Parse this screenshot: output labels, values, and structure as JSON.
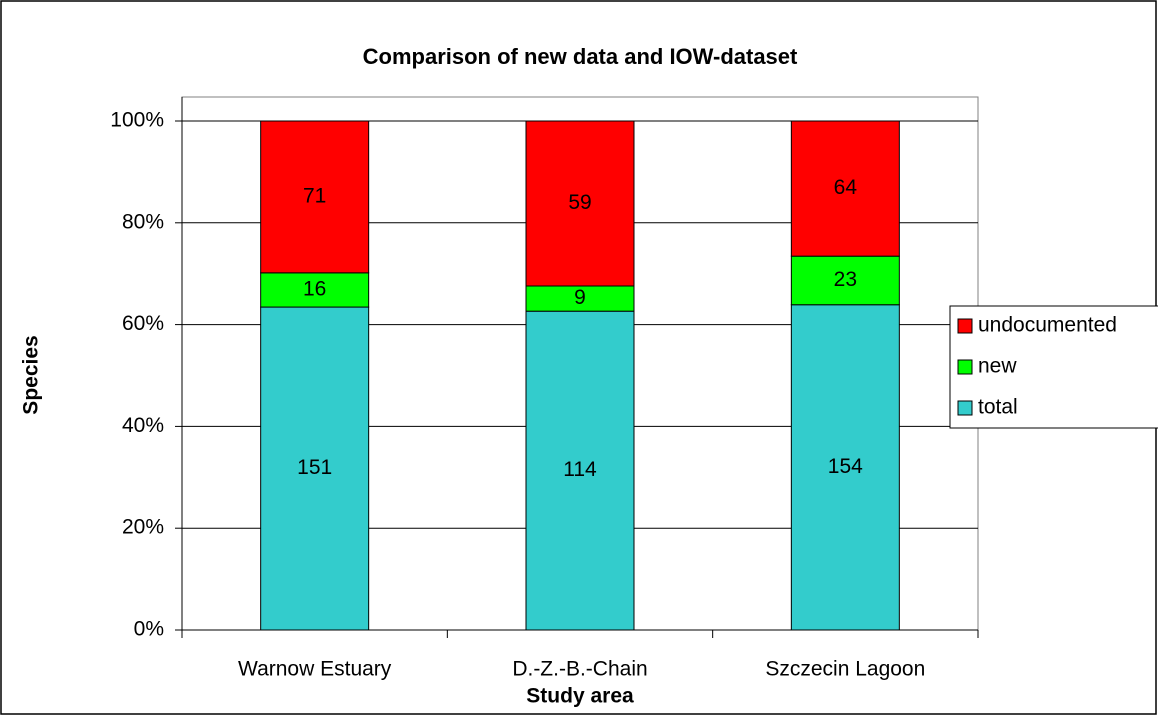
{
  "chart_data": {
    "type": "bar",
    "stacking": "percent",
    "title": "Comparison of new data and IOW-dataset",
    "xlabel": "Study area",
    "ylabel": "Species",
    "categories": [
      "Warnow Estuary",
      "D.-Z.-B.-Chain",
      "Szczecin Lagoon"
    ],
    "series": [
      {
        "name": "total",
        "color": "#33cccc",
        "values": [
          151,
          114,
          154
        ]
      },
      {
        "name": "new",
        "color": "#00ff00",
        "values": [
          16,
          9,
          23
        ]
      },
      {
        "name": "undocumented",
        "color": "#ff0000",
        "values": [
          71,
          59,
          64
        ]
      }
    ],
    "ylim": [
      0,
      100
    ],
    "yticks": [
      {
        "value": 0,
        "label": "0%"
      },
      {
        "value": 20,
        "label": "20%"
      },
      {
        "value": 40,
        "label": "40%"
      },
      {
        "value": 60,
        "label": "60%"
      },
      {
        "value": 80,
        "label": "80%"
      },
      {
        "value": 100,
        "label": "100%"
      }
    ],
    "grid": true,
    "legend": "right"
  }
}
